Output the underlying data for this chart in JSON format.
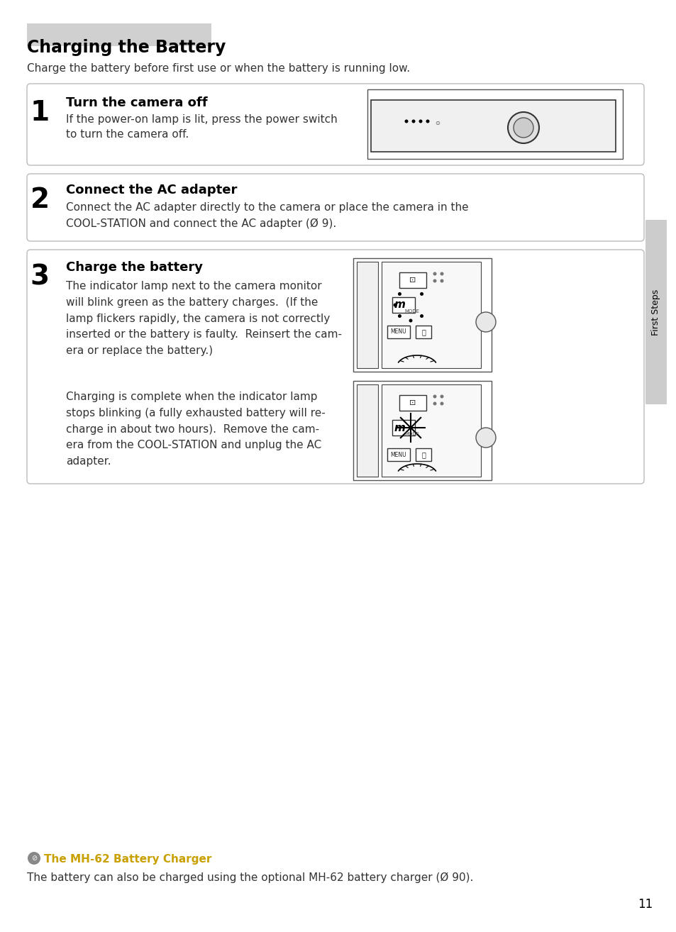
{
  "title": "Charging the Battery",
  "subtitle": "Charge the battery before first use or when the battery is running low.",
  "bg_color": "#ffffff",
  "page_number": "11",
  "sidebar_text": "First Steps",
  "sidebar_color": "#cccccc",
  "step1_num": "1",
  "step1_header": "Turn the camera off",
  "step1_body": "If the power-on lamp is lit, press the power switch\nto turn the camera off.",
  "step2_num": "2",
  "step2_header": "Connect the AC adapter",
  "step2_body": "Connect the AC adapter directly to the camera or place the camera in the\nCOOL-STATION and connect the AC adapter (Ø 9).",
  "step3_num": "3",
  "step3_header": "Charge the battery",
  "step3_body1": "The indicator lamp next to the camera monitor\nwill blink green as the battery charges.  (If the\nlamp flickers rapidly, the camera is not correctly\ninserted or the battery is faulty.  Reinsert the cam-\nera or replace the battery.)",
  "step3_body2": "Charging is complete when the indicator lamp\nstops blinking (a fully exhausted battery will re-\ncharge in about two hours).  Remove the cam-\nera from the COOL-STATION and unplug the AC\nadapter.",
  "footer_icon_text": "The MH-62 Battery Charger",
  "footer_body": "The battery can also be charged using the optional MH-62 battery charger (Ø 90).",
  "box_border_color": "#aaaaaa",
  "box_bg_color": "#f5f5f5",
  "title_highlight_color": "#d0d0d0",
  "header_color": "#000000",
  "body_color": "#333333"
}
